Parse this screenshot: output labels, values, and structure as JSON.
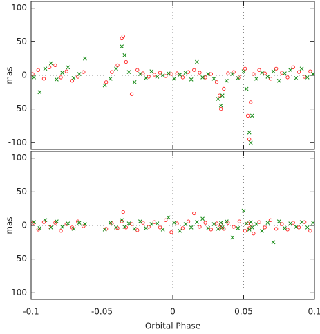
{
  "chart_data": [
    {
      "type": "scatter",
      "ylabel": "mas",
      "xlim": [
        -0.1,
        0.1
      ],
      "ylim": [
        -110,
        110
      ],
      "xticks": [
        -0.1,
        -0.05,
        0,
        0.05,
        0.1
      ],
      "yticks": [
        -100,
        -50,
        0,
        50,
        100
      ],
      "grid": true,
      "series": [
        {
          "color": "#ff2020",
          "marker": "circle",
          "x": [
            -0.099,
            -0.095,
            -0.091,
            -0.087,
            -0.083,
            -0.079,
            -0.075,
            -0.071,
            -0.067,
            -0.063,
            -0.047,
            -0.043,
            -0.039,
            -0.036,
            -0.035,
            -0.033,
            -0.029,
            -0.025,
            -0.021,
            -0.017,
            -0.013,
            -0.009,
            -0.005,
            -0.001,
            0.003,
            0.007,
            0.011,
            0.015,
            0.019,
            0.023,
            0.027,
            0.031,
            0.033,
            0.034,
            0.036,
            0.039,
            0.043,
            0.047,
            0.051,
            0.053,
            0.054,
            0.055,
            0.057,
            0.061,
            0.065,
            0.069,
            0.073,
            0.077,
            0.081,
            0.085,
            0.089,
            0.093,
            0.097
          ],
          "values": [
            2,
            8,
            -5,
            12,
            15,
            -3,
            6,
            -8,
            -2,
            5,
            -10,
            5,
            15,
            55,
            58,
            20,
            -28,
            8,
            3,
            -2,
            1,
            4,
            -1,
            2,
            3,
            -3,
            5,
            8,
            4,
            -3,
            2,
            -10,
            -30,
            -50,
            -20,
            3,
            5,
            -2,
            10,
            -60,
            -95,
            -40,
            2,
            8,
            3,
            -5,
            10,
            4,
            -3,
            12,
            5,
            -2,
            6
          ]
        },
        {
          "color": "#1a8c1a",
          "marker": "cross",
          "x": [
            -0.098,
            -0.094,
            -0.09,
            -0.086,
            -0.082,
            -0.078,
            -0.074,
            -0.07,
            -0.066,
            -0.062,
            -0.048,
            -0.044,
            -0.04,
            -0.036,
            -0.034,
            -0.031,
            -0.027,
            -0.023,
            -0.019,
            -0.015,
            -0.011,
            -0.007,
            -0.003,
            0.001,
            0.005,
            0.009,
            0.013,
            0.017,
            0.021,
            0.025,
            0.029,
            0.032,
            0.034,
            0.035,
            0.038,
            0.042,
            0.046,
            0.05,
            0.052,
            0.054,
            0.055,
            0.056,
            0.059,
            0.063,
            0.067,
            0.071,
            0.075,
            0.079,
            0.083,
            0.087,
            0.091,
            0.095,
            0.099
          ],
          "values": [
            -3,
            -25,
            10,
            18,
            -6,
            4,
            12,
            -4,
            2,
            25,
            -15,
            -5,
            10,
            43,
            30,
            5,
            -10,
            2,
            -4,
            6,
            -2,
            0,
            3,
            -5,
            1,
            4,
            -6,
            20,
            -3,
            2,
            -5,
            -35,
            -45,
            -30,
            -8,
            2,
            -4,
            6,
            -20,
            -85,
            -100,
            -60,
            -5,
            4,
            -2,
            6,
            -8,
            3,
            8,
            -4,
            10,
            -3,
            2
          ]
        }
      ]
    },
    {
      "type": "scatter",
      "ylabel": "mas",
      "xlabel": "Orbital Phase",
      "xlim": [
        -0.1,
        0.1
      ],
      "ylim": [
        -110,
        110
      ],
      "xticks": [
        -0.1,
        -0.05,
        0,
        0.05,
        0.1
      ],
      "yticks": [
        -100,
        -50,
        0,
        50,
        100
      ],
      "grid": true,
      "series": [
        {
          "color": "#ff2020",
          "marker": "circle",
          "x": [
            -0.099,
            -0.095,
            -0.091,
            -0.087,
            -0.083,
            -0.079,
            -0.075,
            -0.071,
            -0.067,
            -0.063,
            -0.047,
            -0.043,
            -0.039,
            -0.036,
            -0.035,
            -0.033,
            -0.029,
            -0.025,
            -0.021,
            -0.017,
            -0.013,
            -0.009,
            -0.005,
            -0.001,
            0.003,
            0.007,
            0.011,
            0.015,
            0.019,
            0.023,
            0.027,
            0.031,
            0.033,
            0.034,
            0.036,
            0.039,
            0.043,
            0.047,
            0.051,
            0.053,
            0.054,
            0.055,
            0.057,
            0.061,
            0.065,
            0.069,
            0.073,
            0.077,
            0.081,
            0.085,
            0.089,
            0.093,
            0.097
          ],
          "values": [
            3,
            -6,
            5,
            -2,
            4,
            -8,
            2,
            -3,
            6,
            -1,
            -5,
            3,
            -4,
            6,
            20,
            -3,
            2,
            -7,
            4,
            -2,
            5,
            -3,
            8,
            -10,
            3,
            -4,
            6,
            18,
            -2,
            4,
            -6,
            3,
            -3,
            2,
            -5,
            4,
            -2,
            6,
            -8,
            3,
            -4,
            2,
            -12,
            5,
            -3,
            8,
            -5,
            2,
            -6,
            4,
            -3,
            5,
            -8
          ]
        },
        {
          "color": "#1a8c1a",
          "marker": "cross",
          "x": [
            -0.098,
            -0.094,
            -0.09,
            -0.086,
            -0.082,
            -0.078,
            -0.074,
            -0.07,
            -0.066,
            -0.062,
            -0.048,
            -0.044,
            -0.04,
            -0.036,
            -0.034,
            -0.031,
            -0.027,
            -0.023,
            -0.019,
            -0.015,
            -0.011,
            -0.007,
            -0.003,
            0.001,
            0.005,
            0.009,
            0.013,
            0.017,
            0.021,
            0.025,
            0.029,
            0.032,
            0.034,
            0.035,
            0.038,
            0.042,
            0.046,
            0.05,
            0.052,
            0.054,
            0.055,
            0.056,
            0.059,
            0.063,
            0.067,
            0.071,
            0.075,
            0.079,
            0.083,
            0.087,
            0.091,
            0.095,
            0.099
          ],
          "values": [
            5,
            -4,
            8,
            -3,
            6,
            -2,
            3,
            -5,
            4,
            2,
            -6,
            4,
            -3,
            8,
            -2,
            3,
            -5,
            6,
            -4,
            2,
            3,
            -6,
            12,
            4,
            -8,
            2,
            -3,
            5,
            10,
            -4,
            2,
            -5,
            4,
            -3,
            6,
            -18,
            -4,
            22,
            3,
            -6,
            5,
            -3,
            2,
            -8,
            4,
            -25,
            6,
            -4,
            3,
            -2,
            5,
            -3,
            4
          ]
        }
      ]
    }
  ]
}
